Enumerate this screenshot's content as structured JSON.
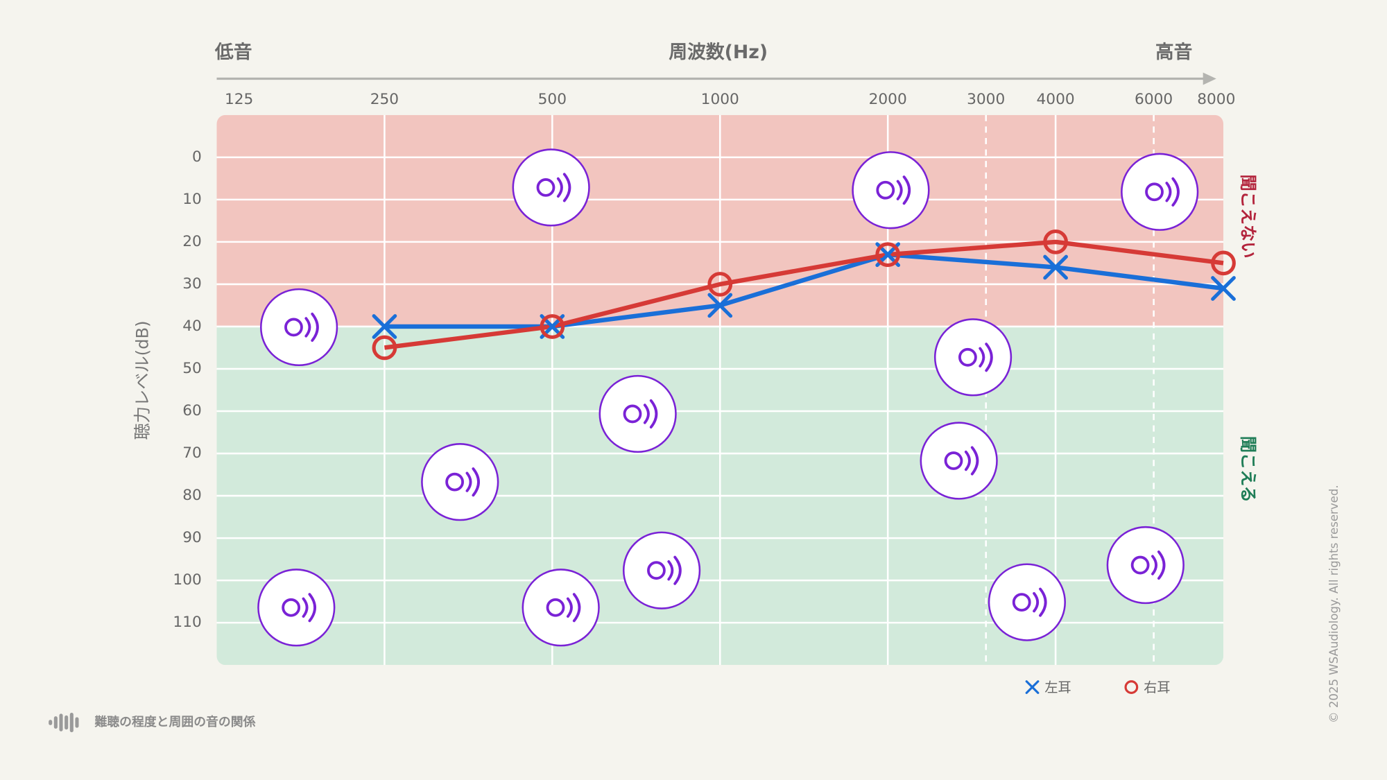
{
  "chart_data": {
    "type": "line",
    "title": "周波数(Hz)",
    "x_low_label": "低音",
    "x_high_label": "高音",
    "y_label": "聴力レベル(dB)",
    "x": [
      250,
      500,
      1000,
      2000,
      4000,
      8000
    ],
    "xlim": [
      125,
      8000
    ],
    "xticks": [
      125,
      250,
      500,
      1000,
      2000,
      3000,
      4000,
      6000,
      8000
    ],
    "x_log_scale": true,
    "dashed_grid_ticks": [
      3000,
      6000
    ],
    "ylim": [
      -10,
      120
    ],
    "y_inverted": true,
    "yticks": [
      0,
      10,
      20,
      30,
      40,
      50,
      60,
      70,
      80,
      90,
      100,
      110
    ],
    "grid": true,
    "zones": [
      {
        "label": "聞こえない",
        "from": -10,
        "to": 40,
        "color": "#f2c5bf",
        "label_color": "#b3243c"
      },
      {
        "label": "聞こえる",
        "from": 40,
        "to": 120,
        "color": "#d2eadb",
        "label_color": "#1f7d57"
      }
    ],
    "series": [
      {
        "name": "左耳",
        "color": "#1a6fd8",
        "marker": "x",
        "values": [
          40,
          40,
          35,
          23,
          26,
          31
        ]
      },
      {
        "name": "右耳",
        "color": "#d63a36",
        "marker": "o",
        "values": [
          45,
          40,
          30,
          23,
          20,
          25
        ]
      }
    ],
    "footer": "難聴の程度と周囲の音の関係",
    "copyright": "© 2025 WSAudiology. All rights reserved."
  }
}
